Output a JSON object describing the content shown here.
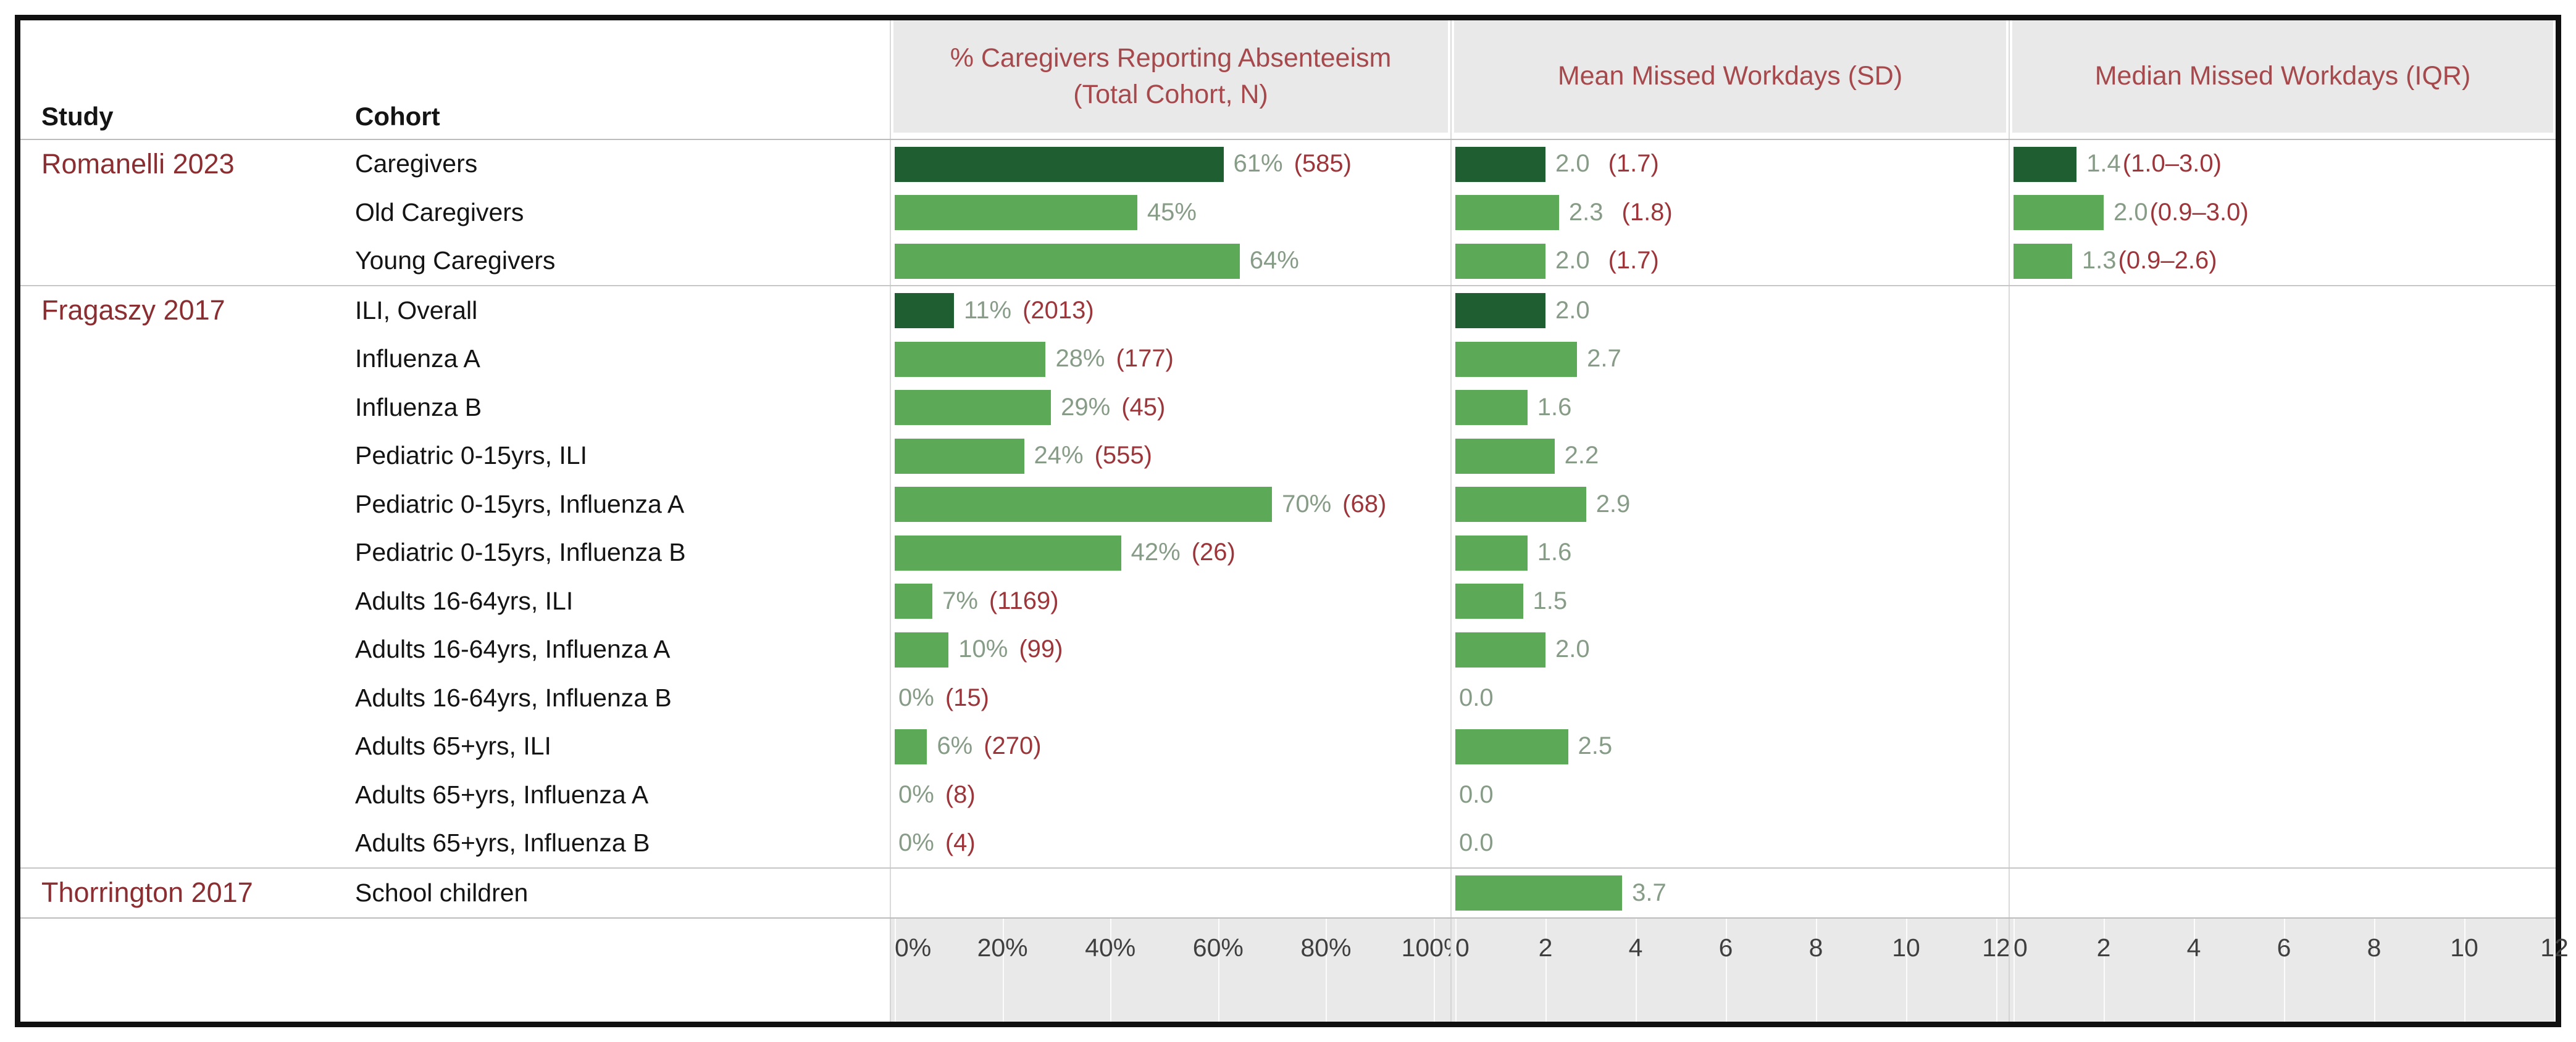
{
  "page": {
    "columns": {
      "study": "Study",
      "cohort": "Cohort"
    }
  },
  "colors": {
    "bar_dark_green": "#1e5e31",
    "bar_green": "#5caa57",
    "value_text_green": "#879c87",
    "paren_text_red": "#9c363b",
    "panel_title_red": "#a6494d",
    "study_name_red": "#8b2e32",
    "band_gray": "#e9e9e9",
    "frame_black": "#101010"
  },
  "chart_data": {
    "type": "bar",
    "orientation": "horizontal",
    "grid": false,
    "legend": false,
    "panels": [
      {
        "metric": "pct",
        "title": "% Caregivers Reporting Absenteeism (Total Cohort, N)",
        "title_line1": "% Caregivers Reporting Absenteeism",
        "title_line2": "(Total Cohort, N)",
        "axis_ticks": [
          "0%",
          "20%",
          "40%",
          "60%",
          "80%",
          "100%"
        ],
        "tick_values": [
          0,
          20,
          40,
          60,
          80,
          100
        ],
        "axis_min": 0,
        "axis_max": 100
      },
      {
        "metric": "mean",
        "title": "Mean Missed Workdays (SD)",
        "title_line1": "Mean Missed Workdays (SD)",
        "title_line2": "",
        "axis_ticks": [
          "0",
          "2",
          "4",
          "6",
          "8",
          "10",
          "12"
        ],
        "tick_values": [
          0,
          2,
          4,
          6,
          8,
          10,
          12
        ],
        "axis_min": 0,
        "axis_max": 12
      },
      {
        "metric": "median",
        "title": "Median Missed Workdays (IQR)",
        "title_line1": "Median Missed Workdays (IQR)",
        "title_line2": "",
        "axis_ticks": [
          "0",
          "2",
          "4",
          "6",
          "8",
          "10",
          "12"
        ],
        "tick_values": [
          0,
          2,
          4,
          6,
          8,
          10,
          12
        ],
        "axis_min": 0,
        "axis_max": 12
      }
    ],
    "rows": [
      {
        "study": "Romanelli 2023",
        "cohort": "Caregivers",
        "group_start": true,
        "emphasis": true,
        "pct": 61,
        "pct_label": "61%",
        "pct_paren": "(585)",
        "mean": 2.0,
        "mean_label": "2.0",
        "mean_paren": "(1.7)",
        "median": 1.4,
        "median_label": "1.4",
        "median_paren": "(1.0–3.0)"
      },
      {
        "study": "",
        "cohort": "Old Caregivers",
        "group_start": false,
        "emphasis": false,
        "pct": 45,
        "pct_label": "45%",
        "pct_paren": null,
        "mean": 2.3,
        "mean_label": "2.3",
        "mean_paren": "(1.8)",
        "median": 2.0,
        "median_label": "2.0",
        "median_paren": "(0.9–3.0)"
      },
      {
        "study": "",
        "cohort": "Young Caregivers",
        "group_start": false,
        "emphasis": false,
        "pct": 64,
        "pct_label": "64%",
        "pct_paren": null,
        "mean": 2.0,
        "mean_label": "2.0",
        "mean_paren": "(1.7)",
        "median": 1.3,
        "median_label": "1.3",
        "median_paren": "(0.9–2.6)"
      },
      {
        "study": "Fragaszy 2017",
        "cohort": "ILI, Overall",
        "group_start": true,
        "emphasis": true,
        "pct": 11,
        "pct_label": "11%",
        "pct_paren": "(2013)",
        "mean": 2.0,
        "mean_label": "2.0",
        "mean_paren": null,
        "median": null,
        "median_label": null,
        "median_paren": null
      },
      {
        "study": "",
        "cohort": "Influenza A",
        "group_start": false,
        "emphasis": false,
        "pct": 28,
        "pct_label": "28%",
        "pct_paren": "(177)",
        "mean": 2.7,
        "mean_label": "2.7",
        "mean_paren": null,
        "median": null,
        "median_label": null,
        "median_paren": null
      },
      {
        "study": "",
        "cohort": "Influenza B",
        "group_start": false,
        "emphasis": false,
        "pct": 29,
        "pct_label": "29%",
        "pct_paren": "(45)",
        "mean": 1.6,
        "mean_label": "1.6",
        "mean_paren": null,
        "median": null,
        "median_label": null,
        "median_paren": null
      },
      {
        "study": "",
        "cohort": "Pediatric 0-15yrs, ILI",
        "group_start": false,
        "emphasis": false,
        "pct": 24,
        "pct_label": "24%",
        "pct_paren": "(555)",
        "mean": 2.2,
        "mean_label": "2.2",
        "mean_paren": null,
        "median": null,
        "median_label": null,
        "median_paren": null
      },
      {
        "study": "",
        "cohort": "Pediatric 0-15yrs, Influenza A",
        "group_start": false,
        "emphasis": false,
        "pct": 70,
        "pct_label": "70%",
        "pct_paren": "(68)",
        "mean": 2.9,
        "mean_label": "2.9",
        "mean_paren": null,
        "median": null,
        "median_label": null,
        "median_paren": null
      },
      {
        "study": "",
        "cohort": "Pediatric 0-15yrs, Influenza B",
        "group_start": false,
        "emphasis": false,
        "pct": 42,
        "pct_label": "42%",
        "pct_paren": "(26)",
        "mean": 1.6,
        "mean_label": "1.6",
        "mean_paren": null,
        "median": null,
        "median_label": null,
        "median_paren": null
      },
      {
        "study": "",
        "cohort": "Adults 16-64yrs, ILI",
        "group_start": false,
        "emphasis": false,
        "pct": 7,
        "pct_label": "7%",
        "pct_paren": "(1169)",
        "mean": 1.5,
        "mean_label": "1.5",
        "mean_paren": null,
        "median": null,
        "median_label": null,
        "median_paren": null
      },
      {
        "study": "",
        "cohort": "Adults 16-64yrs, Influenza A",
        "group_start": false,
        "emphasis": false,
        "pct": 10,
        "pct_label": "10%",
        "pct_paren": "(99)",
        "mean": 2.0,
        "mean_label": "2.0",
        "mean_paren": null,
        "median": null,
        "median_label": null,
        "median_paren": null
      },
      {
        "study": "",
        "cohort": "Adults 16-64yrs, Influenza B",
        "group_start": false,
        "emphasis": false,
        "pct": 0,
        "pct_label": "0%",
        "pct_paren": "(15)",
        "mean": 0.0,
        "mean_label": "0.0",
        "mean_paren": null,
        "median": null,
        "median_label": null,
        "median_paren": null
      },
      {
        "study": "",
        "cohort": "Adults 65+yrs, ILI",
        "group_start": false,
        "emphasis": false,
        "pct": 6,
        "pct_label": "6%",
        "pct_paren": "(270)",
        "mean": 2.5,
        "mean_label": "2.5",
        "mean_paren": null,
        "median": null,
        "median_label": null,
        "median_paren": null
      },
      {
        "study": "",
        "cohort": "Adults 65+yrs, Influenza A",
        "group_start": false,
        "emphasis": false,
        "pct": 0,
        "pct_label": "0%",
        "pct_paren": "(8)",
        "mean": 0.0,
        "mean_label": "0.0",
        "mean_paren": null,
        "median": null,
        "median_label": null,
        "median_paren": null
      },
      {
        "study": "",
        "cohort": "Adults 65+yrs, Influenza B",
        "group_start": false,
        "emphasis": false,
        "pct": 0,
        "pct_label": "0%",
        "pct_paren": "(4)",
        "mean": 0.0,
        "mean_label": "0.0",
        "mean_paren": null,
        "median": null,
        "median_label": null,
        "median_paren": null
      },
      {
        "study": "Thorrington 2017",
        "cohort": "School children",
        "group_start": true,
        "emphasis": false,
        "pct": null,
        "pct_label": null,
        "pct_paren": null,
        "mean": 3.7,
        "mean_label": "3.7",
        "mean_paren": null,
        "median": null,
        "median_label": null,
        "median_paren": null
      }
    ]
  }
}
